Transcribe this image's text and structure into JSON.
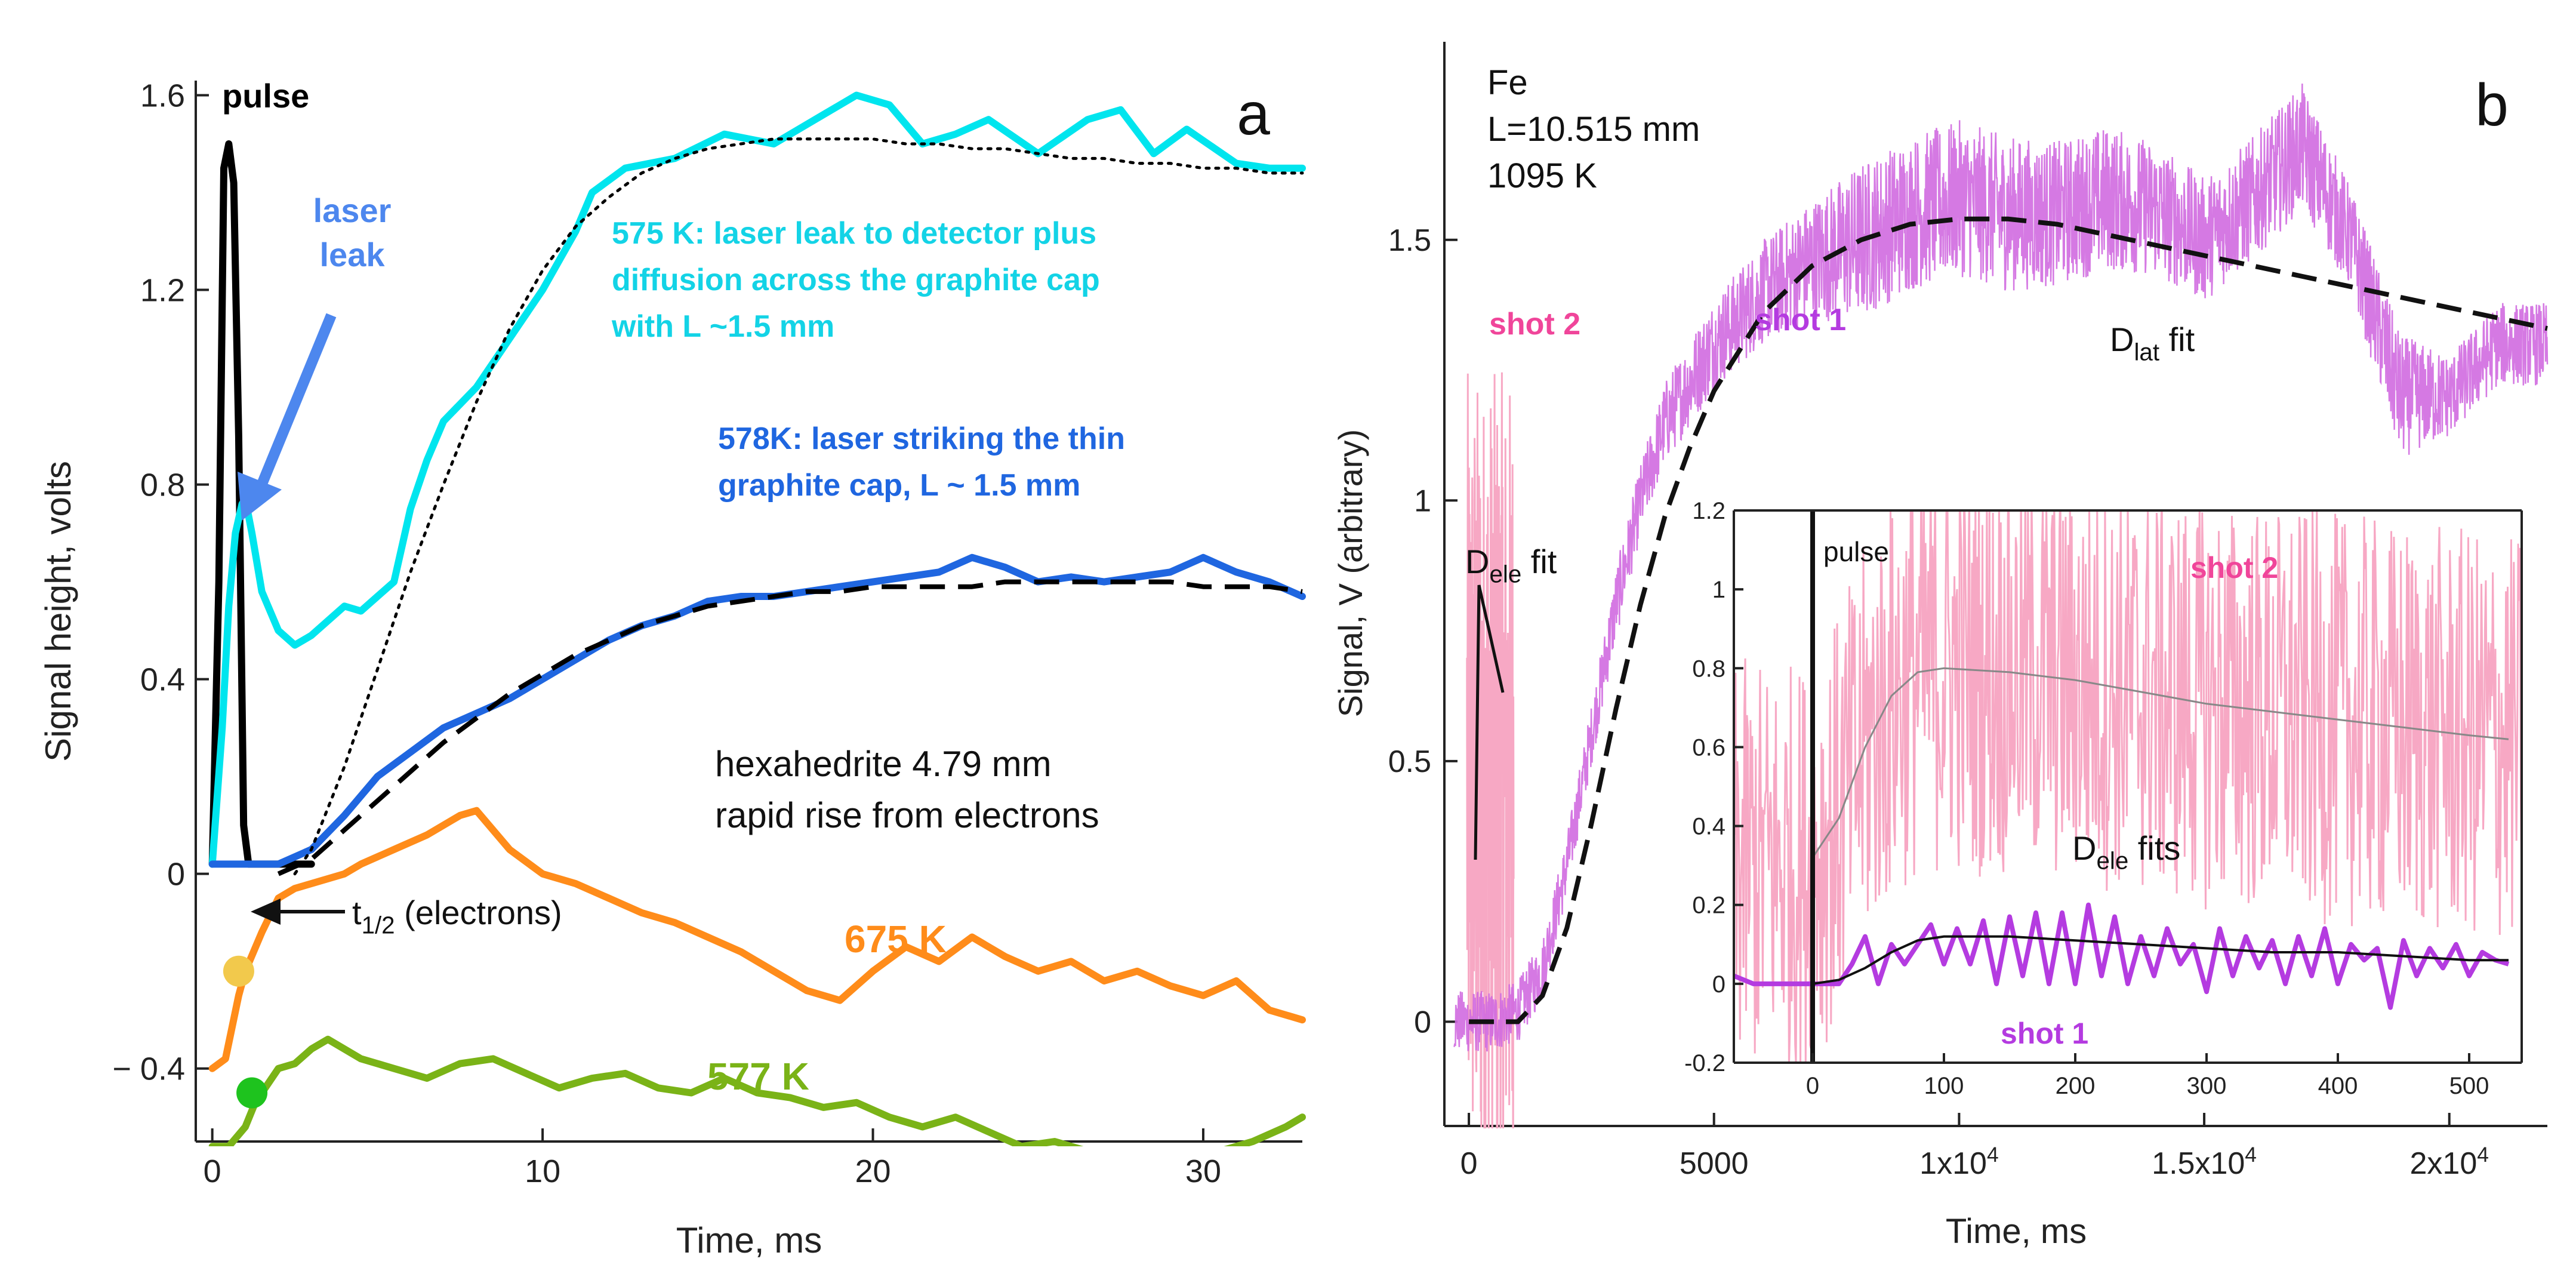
{
  "chart_data": [
    {
      "panel": "a",
      "type": "line",
      "title": "",
      "xlabel": "Time, ms",
      "ylabel": "Signal height, volts",
      "xlim": [
        -0.5,
        33
      ],
      "ylim": [
        -0.55,
        1.63
      ],
      "xticks": [
        0,
        10,
        20,
        30
      ],
      "xtick_labels": [
        "0",
        "10",
        "20",
        "30"
      ],
      "yticks": [
        -0.4,
        0,
        0.4,
        0.8,
        1.2,
        1.6
      ],
      "ytick_labels": [
        "− 0.4",
        "0",
        "0.4",
        "0.8",
        "1.2",
        "1.6"
      ],
      "grid": false,
      "panel_label": "a",
      "series": [
        {
          "color": "#000000",
          "x": [
            0,
            0.2,
            0.35,
            0.5,
            0.65,
            0.8,
            0.95,
            1.1,
            2,
            3
          ],
          "y": [
            0.02,
            0.6,
            1.45,
            1.5,
            1.42,
            0.9,
            0.1,
            0.02,
            0.02,
            0.02
          ]
        },
        {
          "color": "#00e5ee",
          "x": [
            0,
            0.3,
            0.5,
            0.7,
            0.9,
            1.0,
            1.2,
            1.5,
            2.0,
            2.5,
            3.0,
            3.5,
            4.0,
            4.5,
            5.0,
            5.5,
            6.0,
            6.5,
            7.0,
            8.0,
            9.0,
            10.0,
            11.0,
            11.5,
            12.5,
            14.0,
            15.5,
            17.0,
            18.5,
            19.5,
            20.5,
            21.5,
            22.5,
            23.5,
            25.0,
            26.5,
            27.5,
            28.5,
            29.5,
            31.0,
            32.0,
            33.0
          ],
          "y": [
            0.02,
            0.3,
            0.55,
            0.7,
            0.76,
            0.77,
            0.7,
            0.58,
            0.5,
            0.47,
            0.49,
            0.52,
            0.55,
            0.54,
            0.57,
            0.6,
            0.75,
            0.85,
            0.93,
            1.0,
            1.1,
            1.2,
            1.32,
            1.4,
            1.45,
            1.47,
            1.52,
            1.5,
            1.56,
            1.6,
            1.58,
            1.5,
            1.52,
            1.55,
            1.48,
            1.55,
            1.57,
            1.48,
            1.53,
            1.46,
            1.45,
            1.45
          ]
        },
        {
          "color": "#1f66e0",
          "x": [
            0,
            1,
            2,
            3,
            4,
            5,
            6,
            7,
            8,
            9,
            10,
            11,
            12,
            13,
            14,
            15,
            16,
            17,
            18,
            19,
            20,
            21,
            22,
            23,
            24,
            25,
            26,
            27,
            28,
            29,
            30,
            31,
            32,
            33
          ],
          "y": [
            0.02,
            0.02,
            0.02,
            0.05,
            0.12,
            0.2,
            0.25,
            0.3,
            0.33,
            0.36,
            0.4,
            0.44,
            0.48,
            0.51,
            0.53,
            0.56,
            0.57,
            0.57,
            0.58,
            0.59,
            0.6,
            0.61,
            0.62,
            0.65,
            0.63,
            0.6,
            0.61,
            0.6,
            0.61,
            0.62,
            0.65,
            0.62,
            0.6,
            0.57
          ]
        },
        {
          "color": "#ff8c1a",
          "x": [
            0,
            0.4,
            0.8,
            1.0,
            1.5,
            2.0,
            2.5,
            3.0,
            4.0,
            4.5,
            5.5,
            6.5,
            7.5,
            8.0,
            9.0,
            10.0,
            11.0,
            12.0,
            13.0,
            14.0,
            15.0,
            16.0,
            17.0,
            18.0,
            19.0,
            20.0,
            21.0,
            22.0,
            23.0,
            24.0,
            25.0,
            26.0,
            27.0,
            28.0,
            29.0,
            30.0,
            31.0,
            32.0,
            33.0
          ],
          "y": [
            -0.4,
            -0.38,
            -0.25,
            -0.2,
            -0.12,
            -0.05,
            -0.03,
            -0.02,
            0.0,
            0.02,
            0.05,
            0.08,
            0.12,
            0.13,
            0.05,
            0.0,
            -0.02,
            -0.05,
            -0.08,
            -0.1,
            -0.13,
            -0.16,
            -0.2,
            -0.24,
            -0.26,
            -0.2,
            -0.15,
            -0.18,
            -0.13,
            -0.17,
            -0.2,
            -0.18,
            -0.22,
            -0.2,
            -0.23,
            -0.25,
            -0.22,
            -0.28,
            -0.3
          ]
        },
        {
          "color": "#7ab317",
          "x": [
            0,
            0.5,
            1.0,
            1.3,
            1.7,
            2.0,
            2.5,
            3.0,
            3.5,
            4.5,
            5.5,
            6.5,
            7.5,
            8.5,
            9.5,
            10.5,
            11.5,
            12.5,
            13.5,
            14.5,
            15.5,
            16.5,
            17.5,
            18.5,
            19.5,
            20.5,
            21.5,
            22.5,
            23.5,
            24.5,
            25.5,
            26.5,
            27.5,
            28.5,
            29.5,
            30.5,
            31.5,
            32.5,
            33.0
          ],
          "y": [
            -0.56,
            -0.56,
            -0.52,
            -0.47,
            -0.43,
            -0.4,
            -0.39,
            -0.36,
            -0.34,
            -0.38,
            -0.4,
            -0.42,
            -0.39,
            -0.38,
            -0.41,
            -0.44,
            -0.42,
            -0.41,
            -0.44,
            -0.45,
            -0.42,
            -0.45,
            -0.46,
            -0.48,
            -0.47,
            -0.5,
            -0.52,
            -0.5,
            -0.53,
            -0.56,
            -0.55,
            -0.57,
            -0.58,
            -0.59,
            -0.61,
            -0.57,
            -0.55,
            -0.52,
            -0.5
          ]
        },
        {
          "color": "#000000",
          "style": "dotted",
          "x": [
            2.5,
            3,
            4,
            5,
            6,
            7,
            8,
            9,
            10,
            11,
            12,
            13,
            14,
            15,
            16,
            17,
            18,
            19,
            20,
            21,
            22,
            23,
            24,
            25,
            26,
            27,
            28,
            29,
            30,
            31,
            32,
            33
          ],
          "y": [
            0.0,
            0.05,
            0.22,
            0.42,
            0.62,
            0.8,
            0.97,
            1.12,
            1.24,
            1.33,
            1.39,
            1.44,
            1.47,
            1.49,
            1.5,
            1.51,
            1.51,
            1.51,
            1.51,
            1.5,
            1.5,
            1.49,
            1.49,
            1.48,
            1.47,
            1.47,
            1.46,
            1.46,
            1.45,
            1.45,
            1.44,
            1.44
          ]
        },
        {
          "color": "#000000",
          "style": "dashed",
          "x": [
            2,
            3,
            4,
            5,
            6,
            7,
            8,
            9,
            10,
            11,
            12,
            13,
            14,
            15,
            16,
            17,
            18,
            19,
            20,
            21,
            22,
            23,
            24,
            25,
            26,
            27,
            28,
            29,
            30,
            31,
            32,
            33
          ],
          "y": [
            0.0,
            0.03,
            0.09,
            0.15,
            0.21,
            0.27,
            0.32,
            0.37,
            0.41,
            0.45,
            0.48,
            0.51,
            0.53,
            0.55,
            0.56,
            0.57,
            0.58,
            0.58,
            0.59,
            0.59,
            0.59,
            0.59,
            0.6,
            0.6,
            0.6,
            0.6,
            0.6,
            0.6,
            0.59,
            0.59,
            0.59,
            0.58
          ]
        }
      ],
      "annotations": {
        "pulse": "pulse",
        "laser_leak": "laser\nleak",
        "cyan_note": "575 K: laser leak to detector plus\ndiffusion across the graphite cap\nwith L ~1.5 mm",
        "blue_note": "578K: laser striking the thin\ngraphite cap, L ~ 1.5 mm",
        "sample_note": "hexahedrite 4.79 mm\nrapid rise from electrons",
        "t_half": "t",
        "t_half_sub": "1/2",
        "t_half_suffix": " (electrons)",
        "orange_label": "675 K",
        "green_label": "577 K"
      },
      "markers": [
        {
          "color": "#f2c94c",
          "x": 0.8,
          "y": -0.2
        },
        {
          "color": "#1ec31e",
          "x": 1.2,
          "y": -0.45
        }
      ]
    },
    {
      "panel": "b",
      "type": "line",
      "title": "",
      "xlabel": "Time, ms",
      "ylabel": "Signal, V (arbitrary)",
      "xlim": [
        -500,
        22000
      ],
      "ylim": [
        -0.2,
        1.88
      ],
      "xticks": [
        0,
        5000,
        10000,
        15000,
        20000
      ],
      "xtick_labels": [
        "0",
        "5000",
        "1x10",
        "1.5x10",
        "2x10"
      ],
      "xtick_exponents": [
        "",
        "",
        "4",
        "4",
        "4"
      ],
      "yticks": [
        0,
        0.5,
        1,
        1.5
      ],
      "ytick_labels": [
        "0",
        "0.5",
        "1",
        "1.5"
      ],
      "grid": false,
      "panel_label": "b",
      "sample_text": "Fe\nL=10.515 mm\n1095 K",
      "labels": {
        "shot2": "shot 2",
        "shot1": "shot 1",
        "dlat": "D",
        "dlat_sub": "lat",
        "dlat_suffix": " fit",
        "dele": "D",
        "dele_sub": "ele",
        "dele_suffix": " fit"
      },
      "shot1_noise_envelope": {
        "x": [
          -300,
          0,
          500,
          1000,
          1500,
          2000,
          2500,
          3000,
          3500,
          4000,
          5000,
          6000,
          7000,
          8000,
          9000,
          10000,
          11000,
          12000,
          13000,
          14000,
          15000,
          16000,
          17000,
          18000,
          19000,
          20000,
          21000,
          22000
        ],
        "y": [
          0.0,
          0.0,
          0.0,
          0.02,
          0.1,
          0.3,
          0.55,
          0.8,
          1.0,
          1.15,
          1.3,
          1.4,
          1.46,
          1.5,
          1.55,
          1.58,
          1.55,
          1.55,
          1.58,
          1.56,
          1.5,
          1.58,
          1.68,
          1.5,
          1.2,
          1.2,
          1.3,
          1.3
        ],
        "amplitude": [
          0.06,
          0.06,
          0.06,
          0.06,
          0.06,
          0.06,
          0.06,
          0.07,
          0.07,
          0.08,
          0.09,
          0.1,
          0.12,
          0.15,
          0.15,
          0.15,
          0.15,
          0.14,
          0.14,
          0.13,
          0.12,
          0.12,
          0.12,
          0.1,
          0.12,
          0.08,
          0.08,
          0.08
        ]
      },
      "dlat_fit": {
        "x": [
          0,
          1000,
          1500,
          2000,
          2500,
          3000,
          3500,
          4000,
          4500,
          5000,
          6000,
          7000,
          8000,
          9000,
          10000,
          11000,
          12000,
          13000,
          14000,
          15000,
          16000,
          17000,
          18000,
          19000,
          20000,
          21000,
          22000
        ],
        "y": [
          0.0,
          0.0,
          0.05,
          0.18,
          0.38,
          0.6,
          0.8,
          0.97,
          1.1,
          1.21,
          1.36,
          1.45,
          1.5,
          1.53,
          1.54,
          1.54,
          1.53,
          1.51,
          1.49,
          1.47,
          1.45,
          1.43,
          1.41,
          1.39,
          1.37,
          1.35,
          1.33
        ]
      },
      "inset": {
        "xlim": [
          -60,
          540
        ],
        "ylim": [
          -0.2,
          1.2
        ],
        "xticks": [
          0,
          100,
          200,
          300,
          400,
          500
        ],
        "xtick_labels": [
          "0",
          "100",
          "200",
          "300",
          "400",
          "500"
        ],
        "yticks": [
          -0.2,
          0,
          0.2,
          0.4,
          0.6,
          0.8,
          1,
          1.2
        ],
        "ytick_labels": [
          "-0.2",
          "0",
          "0.2",
          "0.4",
          "0.6",
          "0.8",
          "1",
          "1.2"
        ],
        "labels": {
          "pulse": "pulse",
          "shot2": "shot 2",
          "shot1": "shot 1",
          "dele": "D",
          "dele_sub": "ele",
          "dele_suffix": " fits"
        },
        "shot1": {
          "color": "#b43be0",
          "x": [
            -60,
            -45,
            -35,
            -25,
            -15,
            -5,
            0,
            10,
            20,
            30,
            40,
            50,
            60,
            70,
            80,
            90,
            100,
            110,
            120,
            130,
            140,
            150,
            160,
            170,
            180,
            190,
            200,
            210,
            220,
            230,
            240,
            250,
            260,
            270,
            280,
            290,
            300,
            310,
            320,
            330,
            340,
            350,
            360,
            370,
            380,
            390,
            400,
            410,
            420,
            430,
            440,
            450,
            460,
            470,
            480,
            490,
            500,
            510,
            520,
            530
          ],
          "y": [
            0.02,
            0.0,
            0.0,
            0.0,
            0.0,
            0.0,
            0.0,
            0.0,
            0.0,
            0.05,
            0.12,
            0.0,
            0.1,
            0.05,
            0.1,
            0.15,
            0.05,
            0.14,
            0.05,
            0.16,
            0.0,
            0.17,
            0.02,
            0.18,
            0.0,
            0.18,
            0.0,
            0.2,
            0.02,
            0.17,
            0.0,
            0.12,
            0.02,
            0.14,
            0.05,
            0.1,
            -0.02,
            0.14,
            0.02,
            0.12,
            0.04,
            0.11,
            0.0,
            0.12,
            0.02,
            0.14,
            0.0,
            0.1,
            0.06,
            0.09,
            -0.06,
            0.11,
            0.02,
            0.09,
            0.04,
            0.1,
            0.02,
            0.08,
            0.06,
            0.05
          ]
        },
        "shot1_fit": {
          "x": [
            0,
            20,
            40,
            60,
            80,
            100,
            150,
            200,
            250,
            300,
            350,
            400,
            450,
            500,
            530
          ],
          "y": [
            0.0,
            0.01,
            0.04,
            0.08,
            0.11,
            0.12,
            0.12,
            0.11,
            0.1,
            0.09,
            0.08,
            0.08,
            0.07,
            0.06,
            0.06
          ]
        },
        "shot2_fit": {
          "x": [
            0,
            20,
            40,
            60,
            80,
            100,
            150,
            200,
            250,
            300,
            350,
            400,
            450,
            500,
            530
          ],
          "y": [
            0.32,
            0.42,
            0.6,
            0.73,
            0.79,
            0.8,
            0.79,
            0.77,
            0.74,
            0.71,
            0.69,
            0.67,
            0.65,
            0.63,
            0.62
          ]
        }
      }
    }
  ]
}
